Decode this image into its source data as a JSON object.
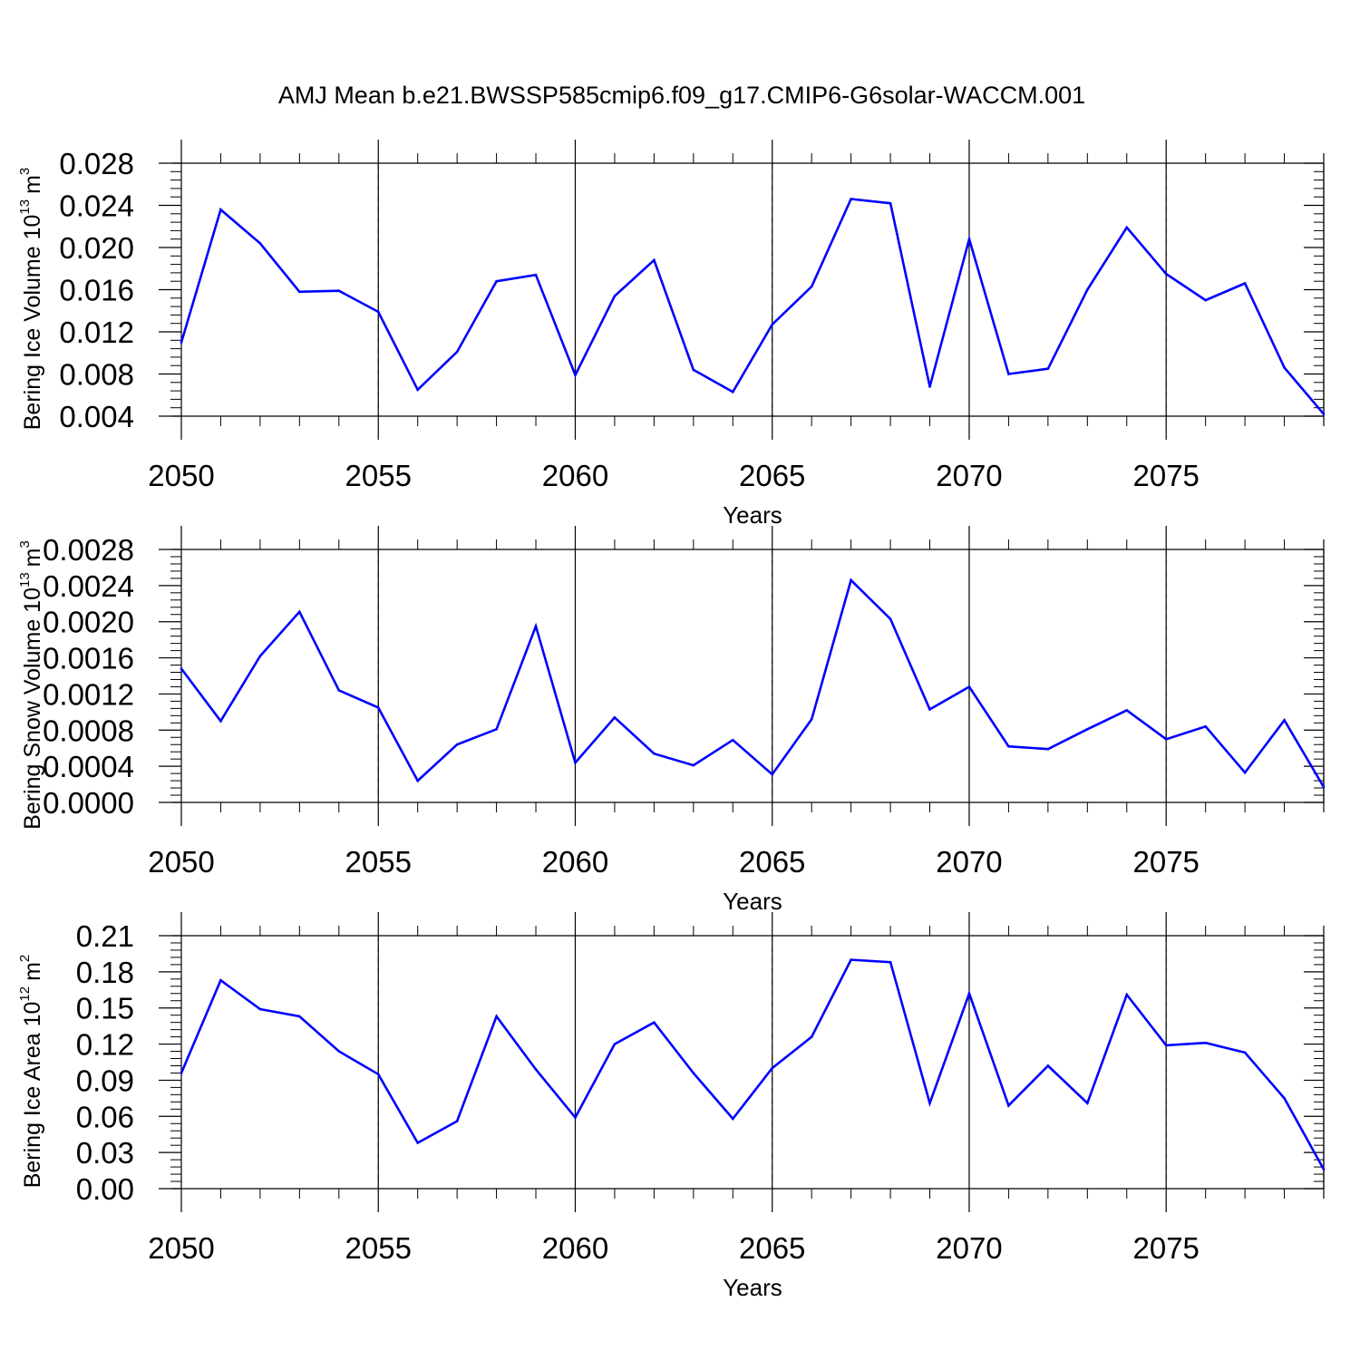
{
  "figure": {
    "title": "AMJ Mean b.e21.BWSSP585cmip6.f09_g17.CMIP6-G6solar-WACCM.001"
  },
  "chart_data": [
    {
      "type": "line",
      "ylabel_text": "Bering Ice Volume 10",
      "ylabel_exp": "13",
      "ylabel_unit": "m",
      "ylabel_unit_exp": "3",
      "xlabel": "Years",
      "xlim": [
        2050,
        2079
      ],
      "ylim": [
        0.004,
        0.028
      ],
      "x_ticks": [
        2050,
        2055,
        2060,
        2065,
        2070,
        2075
      ],
      "y_ticks": [
        "0.004",
        "0.008",
        "0.012",
        "0.016",
        "0.020",
        "0.024",
        "0.028"
      ],
      "grid": "vertical dashed at labeled x ticks",
      "line_color": "#0000ff",
      "x": [
        2050,
        2051,
        2052,
        2053,
        2054,
        2055,
        2056,
        2057,
        2058,
        2059,
        2060,
        2061,
        2062,
        2063,
        2064,
        2065,
        2066,
        2067,
        2068,
        2069,
        2070,
        2071,
        2072,
        2073,
        2074,
        2075,
        2076,
        2077,
        2078,
        2079
      ],
      "values": [
        0.011,
        0.0236,
        0.0204,
        0.0158,
        0.0159,
        0.0139,
        0.0065,
        0.0101,
        0.0168,
        0.0174,
        0.0079,
        0.0154,
        0.0188,
        0.0084,
        0.0063,
        0.0127,
        0.0163,
        0.0246,
        0.0242,
        0.0068,
        0.0208,
        0.008,
        0.0085,
        0.016,
        0.0219,
        0.0175,
        0.015,
        0.0166,
        0.0086,
        0.0042
      ]
    },
    {
      "type": "line",
      "ylabel_text": "Bering Snow Volume 10",
      "ylabel_exp": "13",
      "ylabel_unit": "m",
      "ylabel_unit_exp": "3",
      "xlabel": "Years",
      "xlim": [
        2050,
        2079
      ],
      "ylim": [
        0.0,
        0.0028
      ],
      "x_ticks": [
        2050,
        2055,
        2060,
        2065,
        2070,
        2075
      ],
      "y_ticks": [
        "0.0000",
        "0.0004",
        "0.0008",
        "0.0012",
        "0.0016",
        "0.0020",
        "0.0024",
        "0.0028"
      ],
      "grid": "vertical dashed at labeled x ticks",
      "line_color": "#0000ff",
      "x": [
        2050,
        2051,
        2052,
        2053,
        2054,
        2055,
        2056,
        2057,
        2058,
        2059,
        2060,
        2061,
        2062,
        2063,
        2064,
        2065,
        2066,
        2067,
        2068,
        2069,
        2070,
        2071,
        2072,
        2073,
        2074,
        2075,
        2076,
        2077,
        2078,
        2079
      ],
      "values": [
        0.00148,
        0.0009,
        0.00162,
        0.00211,
        0.00124,
        0.00105,
        0.00024,
        0.00064,
        0.00081,
        0.00195,
        0.00044,
        0.00094,
        0.00054,
        0.00041,
        0.00069,
        0.00031,
        0.00092,
        0.00246,
        0.00203,
        0.00103,
        0.00128,
        0.00062,
        0.00059,
        0.00081,
        0.00102,
        0.0007,
        0.00084,
        0.00033,
        0.00091,
        0.00017
      ]
    },
    {
      "type": "line",
      "ylabel_text": "Bering Ice Area 10",
      "ylabel_exp": "12",
      "ylabel_unit": "m",
      "ylabel_unit_exp": "2",
      "xlabel": "Years",
      "xlim": [
        2050,
        2079
      ],
      "ylim": [
        0.0,
        0.21
      ],
      "x_ticks": [
        2050,
        2055,
        2060,
        2065,
        2070,
        2075
      ],
      "y_ticks": [
        "0.00",
        "0.03",
        "0.06",
        "0.09",
        "0.12",
        "0.15",
        "0.18",
        "0.21"
      ],
      "grid": "vertical dashed at labeled x ticks",
      "line_color": "#0000ff",
      "x": [
        2050,
        2051,
        2052,
        2053,
        2054,
        2055,
        2056,
        2057,
        2058,
        2059,
        2060,
        2061,
        2062,
        2063,
        2064,
        2065,
        2066,
        2067,
        2068,
        2069,
        2070,
        2071,
        2072,
        2073,
        2074,
        2075,
        2076,
        2077,
        2078,
        2079
      ],
      "values": [
        0.096,
        0.173,
        0.149,
        0.143,
        0.114,
        0.095,
        0.038,
        0.056,
        0.143,
        0.099,
        0.059,
        0.12,
        0.138,
        0.096,
        0.058,
        0.1,
        0.126,
        0.19,
        0.188,
        0.071,
        0.162,
        0.069,
        0.102,
        0.071,
        0.161,
        0.119,
        0.121,
        0.113,
        0.075,
        0.016
      ]
    }
  ]
}
